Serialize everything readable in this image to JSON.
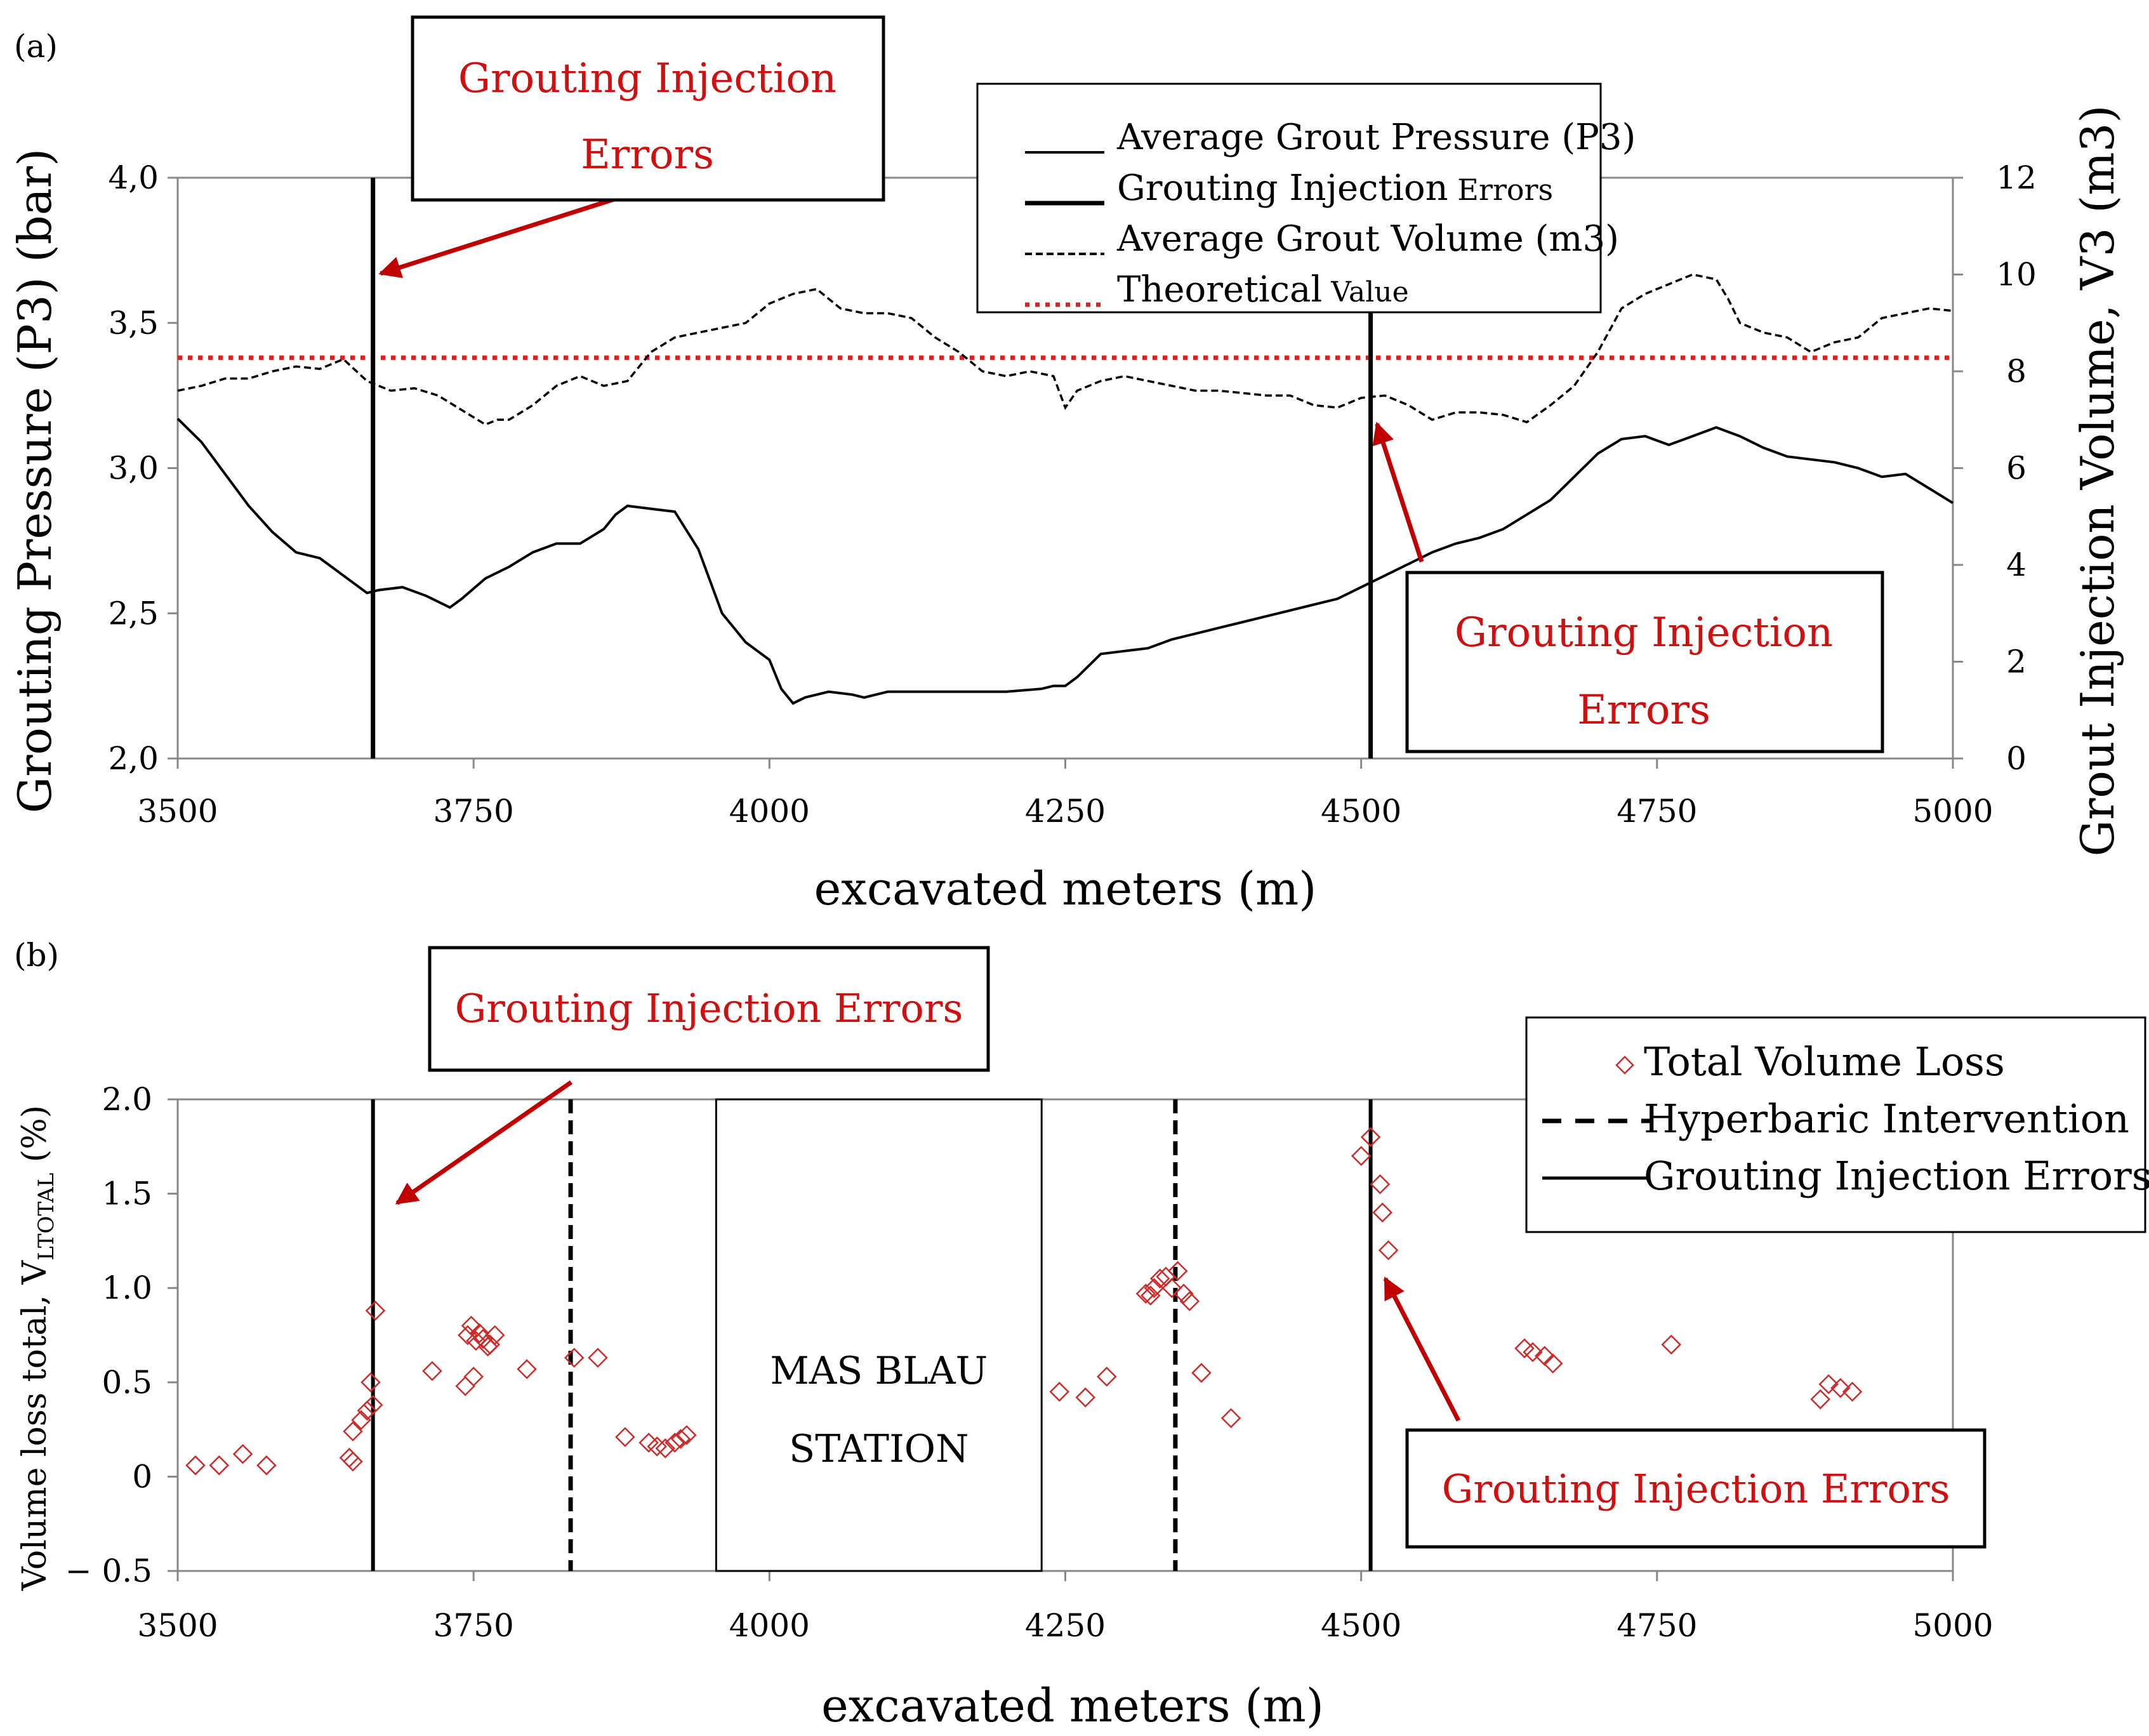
{
  "chart_data": [
    {
      "panel": "(a)",
      "type": "line",
      "xlabel": "excavated meters (m)",
      "ylabel": "Grouting Pressure (P3)  (bar)",
      "y2label": "Grout Injection Volume, V3 (m3)",
      "xlim": [
        3500,
        5000
      ],
      "ylim": [
        2.0,
        4.0
      ],
      "y2lim": [
        0,
        12
      ],
      "x_ticks": [
        "3500",
        "3750",
        "4000",
        "4250",
        "4500",
        "4750",
        "5000"
      ],
      "y_ticks": [
        "2,0",
        "2,5",
        "3,0",
        "3,5",
        "4,0"
      ],
      "y2_ticks": [
        "0",
        "2",
        "4",
        "6",
        "8",
        "10",
        "12"
      ],
      "legend": {
        "items": [
          {
            "name": "Average Grout Pressure (P3)",
            "style": "solid-thin"
          },
          {
            "name": "Grouting Injection",
            "suffix": "Errors",
            "style": "solid-thick"
          },
          {
            "name": "Average Grout Volume (m3)",
            "style": "dashed"
          },
          {
            "name": "Theoretical",
            "suffix": "Value",
            "style": "dotted-red"
          }
        ]
      },
      "series": [
        {
          "name": "Average Grout Pressure (P3)",
          "axis": "left",
          "x": [
            3500,
            3520,
            3540,
            3560,
            3580,
            3600,
            3620,
            3640,
            3660,
            3670,
            3690,
            3710,
            3730,
            3740,
            3760,
            3780,
            3800,
            3820,
            3840,
            3860,
            3870,
            3880,
            3900,
            3920,
            3940,
            3960,
            3970,
            3980,
            4000,
            4010,
            4020,
            4030,
            4050,
            4070,
            4080,
            4090,
            4100,
            4150,
            4200,
            4230,
            4240,
            4250,
            4260,
            4270,
            4280,
            4300,
            4320,
            4340,
            4360,
            4380,
            4400,
            4420,
            4440,
            4460,
            4480,
            4500,
            4520,
            4540,
            4560,
            4580,
            4600,
            4620,
            4640,
            4660,
            4680,
            4700,
            4720,
            4740,
            4760,
            4780,
            4800,
            4820,
            4840,
            4860,
            4880,
            4900,
            4920,
            4940,
            4960,
            4980,
            5000
          ],
          "y": [
            3.17,
            3.09,
            2.98,
            2.87,
            2.78,
            2.71,
            2.69,
            2.63,
            2.57,
            2.58,
            2.59,
            2.56,
            2.52,
            2.55,
            2.62,
            2.66,
            2.71,
            2.74,
            2.74,
            2.79,
            2.84,
            2.87,
            2.86,
            2.85,
            2.72,
            2.5,
            2.45,
            2.4,
            2.34,
            2.24,
            2.19,
            2.21,
            2.23,
            2.22,
            2.21,
            2.22,
            2.23,
            2.23,
            2.23,
            2.24,
            2.25,
            2.25,
            2.28,
            2.32,
            2.36,
            2.37,
            2.38,
            2.41,
            2.43,
            2.45,
            2.47,
            2.49,
            2.51,
            2.53,
            2.55,
            2.59,
            2.63,
            2.67,
            2.71,
            2.74,
            2.76,
            2.79,
            2.84,
            2.89,
            2.97,
            3.05,
            3.1,
            3.11,
            3.08,
            3.11,
            3.14,
            3.11,
            3.07,
            3.04,
            3.03,
            3.02,
            3.0,
            2.97,
            2.98,
            2.93,
            2.88
          ]
        },
        {
          "name": "Average Grout Volume (m3)",
          "axis": "right",
          "x": [
            3500,
            3520,
            3540,
            3560,
            3580,
            3600,
            3620,
            3640,
            3660,
            3680,
            3700,
            3720,
            3740,
            3760,
            3770,
            3780,
            3800,
            3820,
            3840,
            3860,
            3880,
            3900,
            3920,
            3940,
            3960,
            3980,
            4000,
            4020,
            4040,
            4060,
            4080,
            4100,
            4120,
            4140,
            4160,
            4180,
            4200,
            4220,
            4240,
            4250,
            4260,
            4280,
            4300,
            4320,
            4340,
            4360,
            4380,
            4400,
            4420,
            4440,
            4460,
            4480,
            4500,
            4520,
            4540,
            4560,
            4580,
            4600,
            4620,
            4640,
            4660,
            4680,
            4700,
            4720,
            4740,
            4760,
            4780,
            4800,
            4810,
            4820,
            4840,
            4860,
            4880,
            4900,
            4920,
            4940,
            4960,
            4980,
            5000
          ],
          "y": [
            7.6,
            7.7,
            7.85,
            7.85,
            8.0,
            8.1,
            8.05,
            8.25,
            7.8,
            7.6,
            7.65,
            7.5,
            7.2,
            6.9,
            7.0,
            7.0,
            7.3,
            7.7,
            7.9,
            7.7,
            7.8,
            8.4,
            8.7,
            8.8,
            8.9,
            9.0,
            9.4,
            9.6,
            9.7,
            9.3,
            9.2,
            9.2,
            9.1,
            8.7,
            8.4,
            8.0,
            7.9,
            8.0,
            7.9,
            7.25,
            7.6,
            7.8,
            7.9,
            7.8,
            7.7,
            7.6,
            7.6,
            7.55,
            7.5,
            7.5,
            7.3,
            7.25,
            7.45,
            7.5,
            7.3,
            7.0,
            7.15,
            7.15,
            7.1,
            6.95,
            7.3,
            7.7,
            8.4,
            9.3,
            9.6,
            9.8,
            10.0,
            9.9,
            9.5,
            9.0,
            8.8,
            8.7,
            8.4,
            8.6,
            8.7,
            9.1,
            9.2,
            9.3,
            9.25
          ]
        },
        {
          "name": "Theoretical Value",
          "axis": "left",
          "x": [
            3500,
            5000
          ],
          "y": [
            3.38,
            3.38
          ]
        }
      ],
      "vlines": [
        {
          "name": "Grouting Injection Errors",
          "x": 3665,
          "style": "solid"
        },
        {
          "name": "Grouting Injection Errors",
          "x": 4508,
          "style": "solid"
        }
      ],
      "annotations": [
        {
          "lines": [
            "Grouting Injection",
            "Errors"
          ],
          "target_x": 3665,
          "target_y": 3.67
        },
        {
          "lines": [
            "Grouting Injection",
            "Errors"
          ],
          "target_x": 4508,
          "target_y": 3.17
        }
      ]
    },
    {
      "panel": "(b)",
      "type": "scatter",
      "xlabel": "excavated meters (m)",
      "ylabel_main": "Volume loss total, V",
      "ylabel_sub": "LTOTAL",
      "ylabel_unit": " (%)",
      "xlim": [
        3500,
        5000
      ],
      "ylim": [
        -0.5,
        2.0
      ],
      "x_ticks": [
        "3500",
        "3750",
        "4000",
        "4250",
        "4500",
        "4750",
        "5000"
      ],
      "y_ticks": [
        "− 0.5",
        "0",
        "0.5",
        "1.0",
        "1.5",
        "2.0"
      ],
      "legend": {
        "items": [
          {
            "name": "Total Volume Loss",
            "style": "diamond"
          },
          {
            "name": "Hyperbaric Intervention",
            "style": "dashed"
          },
          {
            "name": "Grouting Injection Errors",
            "style": "solid"
          }
        ]
      },
      "series": [
        {
          "name": "Total Volume Loss",
          "points": [
            [
              3515,
              0.06
            ],
            [
              3535,
              0.06
            ],
            [
              3555,
              0.12
            ],
            [
              3575,
              0.06
            ],
            [
              3645,
              0.1
            ],
            [
              3648,
              0.08
            ],
            [
              3648,
              0.24
            ],
            [
              3655,
              0.3
            ],
            [
              3660,
              0.35
            ],
            [
              3663,
              0.5
            ],
            [
              3665,
              0.38
            ],
            [
              3667,
              0.88
            ],
            [
              3715,
              0.56
            ],
            [
              3743,
              0.48
            ],
            [
              3745,
              0.75
            ],
            [
              3748,
              0.8
            ],
            [
              3750,
              0.53
            ],
            [
              3752,
              0.72
            ],
            [
              3755,
              0.76
            ],
            [
              3758,
              0.73
            ],
            [
              3762,
              0.69
            ],
            [
              3764,
              0.7
            ],
            [
              3768,
              0.75
            ],
            [
              3795,
              0.57
            ],
            [
              3835,
              0.63
            ],
            [
              3855,
              0.63
            ],
            [
              3878,
              0.21
            ],
            [
              3898,
              0.18
            ],
            [
              3905,
              0.16
            ],
            [
              3912,
              0.15
            ],
            [
              3920,
              0.18
            ],
            [
              3925,
              0.2
            ],
            [
              3930,
              0.22
            ],
            [
              4245,
              0.45
            ],
            [
              4267,
              0.42
            ],
            [
              4285,
              0.53
            ],
            [
              4318,
              0.97
            ],
            [
              4322,
              0.96
            ],
            [
              4325,
              1.0
            ],
            [
              4330,
              1.05
            ],
            [
              4335,
              1.06
            ],
            [
              4340,
              1.0
            ],
            [
              4345,
              1.09
            ],
            [
              4350,
              0.97
            ],
            [
              4355,
              0.93
            ],
            [
              4365,
              0.55
            ],
            [
              4390,
              0.31
            ],
            [
              4500,
              1.7
            ],
            [
              4508,
              1.8
            ],
            [
              4516,
              1.55
            ],
            [
              4518,
              1.4
            ],
            [
              4523,
              1.2
            ],
            [
              4638,
              0.68
            ],
            [
              4645,
              0.66
            ],
            [
              4655,
              0.64
            ],
            [
              4662,
              0.6
            ],
            [
              4762,
              0.7
            ],
            [
              4888,
              0.41
            ],
            [
              4895,
              0.49
            ],
            [
              4905,
              0.47
            ],
            [
              4915,
              0.45
            ]
          ]
        }
      ],
      "vlines": [
        {
          "name": "Grouting Injection Errors",
          "x": 3665,
          "style": "solid"
        },
        {
          "name": "Hyperbaric Intervention",
          "x": 3832,
          "style": "dashed"
        },
        {
          "name": "Hyperbaric Intervention",
          "x": 4343,
          "style": "dashed"
        },
        {
          "name": "Grouting Injection Errors",
          "x": 4508,
          "style": "solid"
        }
      ],
      "station_box": {
        "lines": [
          "MAS BLAU",
          "STATION"
        ],
        "x_from": 3955,
        "x_to": 4230
      },
      "annotations": [
        {
          "text": "Grouting Injection Errors",
          "target_x": 3680,
          "target_y": 1.45
        },
        {
          "text": "Grouting Injection Errors",
          "target_x": 4515,
          "target_y": 1.05
        }
      ]
    }
  ]
}
